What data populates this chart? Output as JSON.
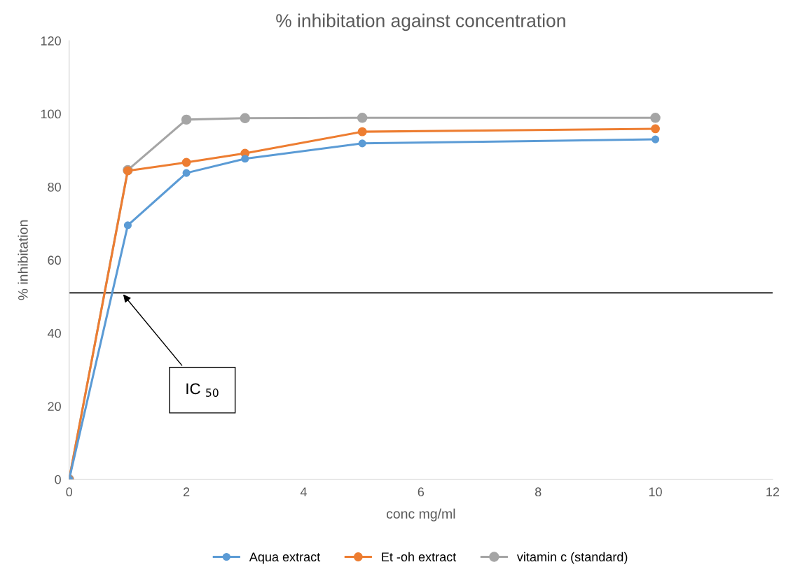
{
  "chart_data": {
    "type": "line",
    "title": "% inhibitation against concentration",
    "xlabel": "conc mg/ml",
    "ylabel": "% inhibitation",
    "x": [
      0,
      1,
      2,
      3,
      5,
      10
    ],
    "series": [
      {
        "name": "Aqua extract",
        "color": "#5b9bd5",
        "values": [
          0,
          69.5,
          83.8,
          87.7,
          91.9,
          93.0
        ]
      },
      {
        "name": "Et -oh extract",
        "color": "#ed7d31",
        "values": [
          0,
          84.4,
          86.7,
          89.2,
          95.1,
          95.9
        ]
      },
      {
        "name": "vitamin c (standard)",
        "color": "#a5a5a5",
        "values": [
          0,
          84.6,
          98.4,
          98.8,
          98.9,
          98.9
        ]
      }
    ],
    "xlim": [
      0,
      12
    ],
    "xticks": [
      0,
      2,
      4,
      6,
      8,
      10,
      12
    ],
    "ylim": [
      0,
      120
    ],
    "yticks": [
      0,
      20,
      40,
      60,
      80,
      100,
      120
    ],
    "ref_lines": [
      {
        "axis": "y",
        "value": 51,
        "color": "#000000"
      }
    ],
    "annotations": [
      {
        "text": "IC $_{50}$",
        "x": 0.9,
        "y": 51
      }
    ],
    "grid": false,
    "legend": "bottom",
    "marker": "circle",
    "line_style": "solid"
  }
}
